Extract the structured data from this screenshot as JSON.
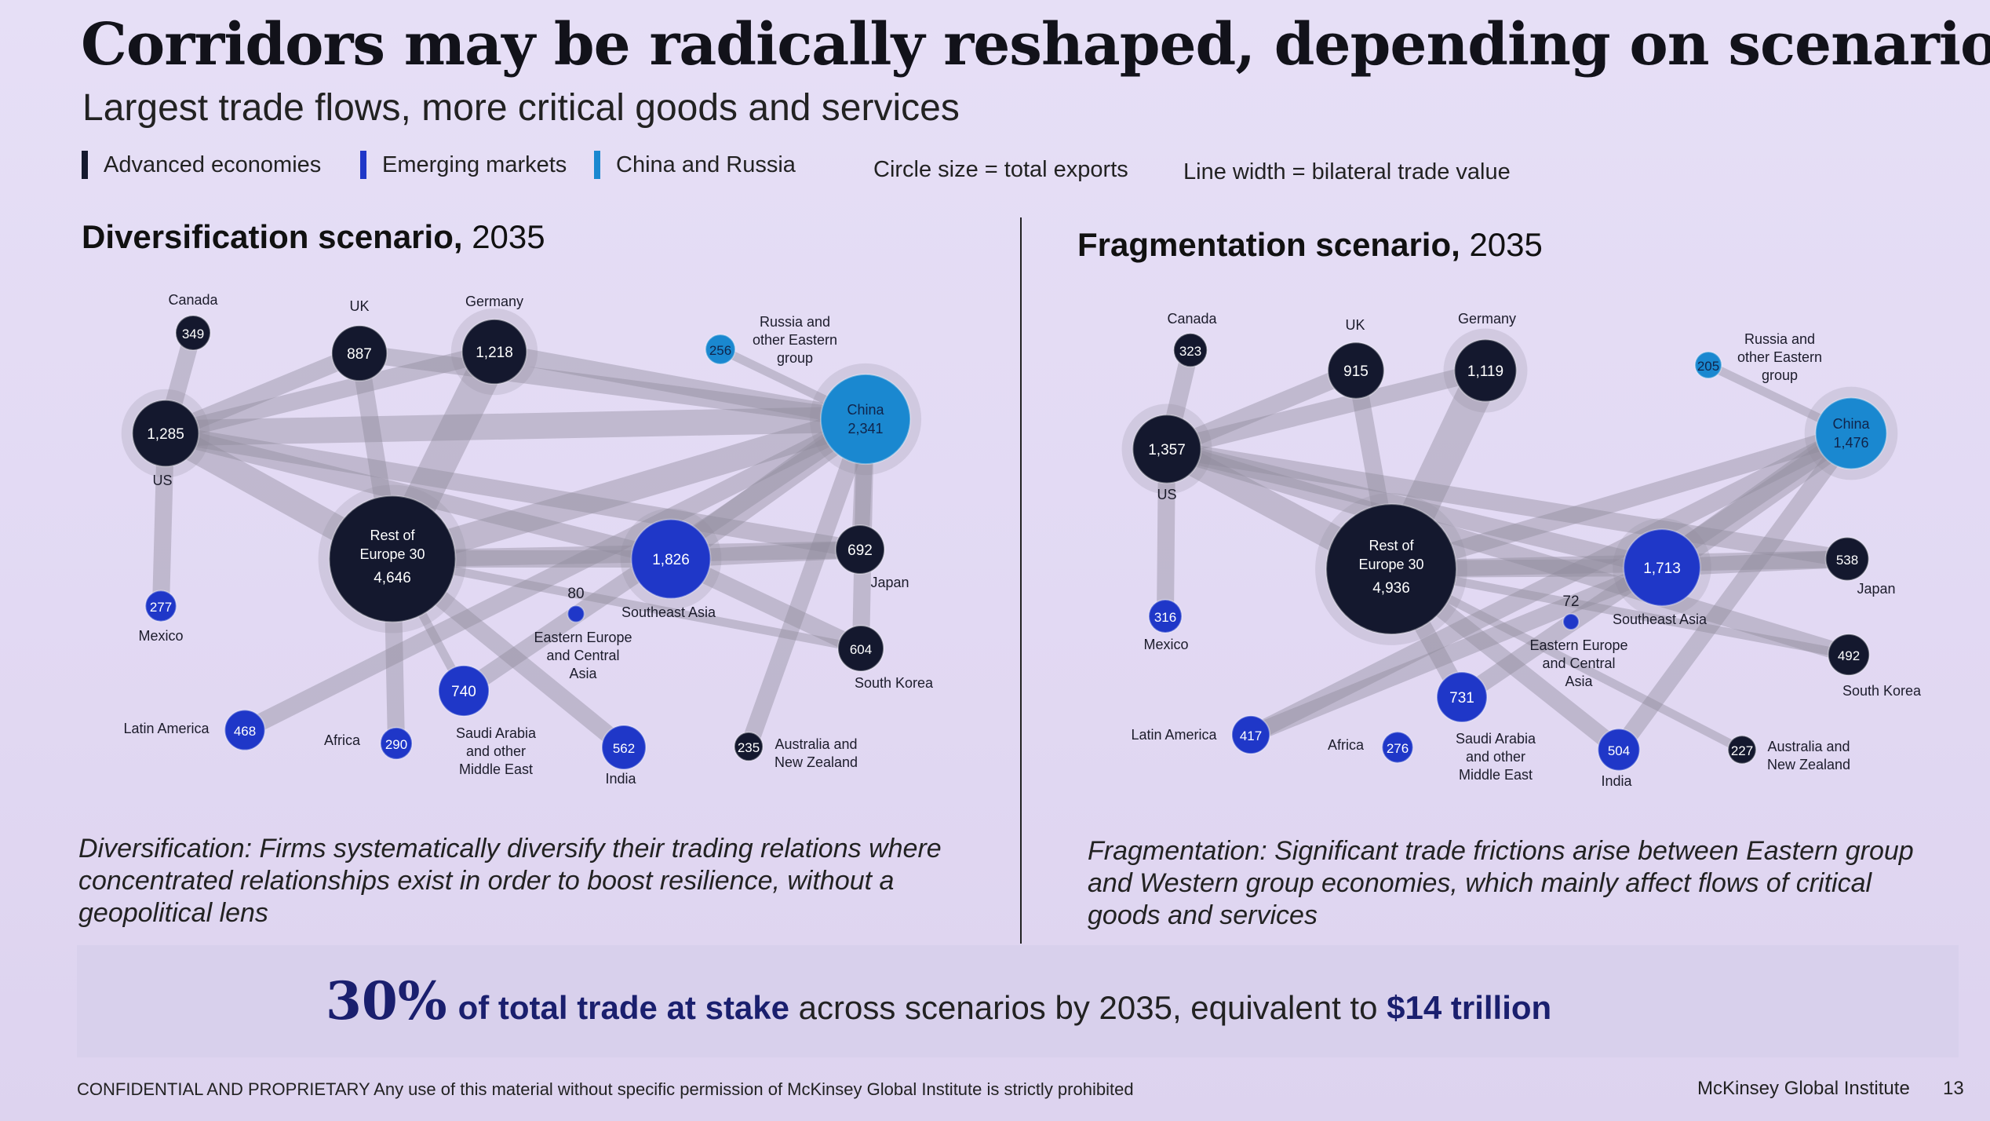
{
  "title": "Corridors may be radically reshaped, depending on scenario",
  "subtitle": "Largest trade flows, more critical goods and services",
  "legend": {
    "advanced": "Advanced economies",
    "emerging": "Emerging markets",
    "china_russia": "China and Russia",
    "circle_note": "Circle size = total exports",
    "line_note": "Line width = bilateral trade value"
  },
  "colors": {
    "advanced": "#14182e",
    "emerging": "#1f37c8",
    "china_russia": "#1a88d0",
    "flow": "#8f8a9c",
    "background": "#e4dcf4"
  },
  "diversification": {
    "title_bold": "Diversification scenario,",
    "title_year": " 2035",
    "caption": "Diversification: Firms systematically diversify their trading relations where concentrated relationships exist in order to boost resilience, without a geopolitical lens",
    "nodes": [
      {
        "id": "canada",
        "name": "Canada",
        "value": 349,
        "value_label": "349",
        "group": "advanced"
      },
      {
        "id": "uk",
        "name": "UK",
        "value": 887,
        "value_label": "887",
        "group": "advanced"
      },
      {
        "id": "germany",
        "name": "Germany",
        "value": 1218,
        "value_label": "1,218",
        "group": "advanced"
      },
      {
        "id": "russia",
        "name": "Russia and other Eastern group",
        "value": 256,
        "value_label": "256",
        "group": "china_russia"
      },
      {
        "id": "china",
        "name": "China",
        "value": 2341,
        "value_label": "2,341",
        "group": "china_russia"
      },
      {
        "id": "us",
        "name": "US",
        "value": 1285,
        "value_label": "1,285",
        "group": "advanced"
      },
      {
        "id": "rest_europe",
        "name": "Rest of Europe 30",
        "value": 4646,
        "value_label": "4,646",
        "group": "advanced"
      },
      {
        "id": "se_asia",
        "name": "Southeast Asia",
        "value": 1826,
        "value_label": "1,826",
        "group": "emerging"
      },
      {
        "id": "japan",
        "name": "Japan",
        "value": 692,
        "value_label": "692",
        "group": "advanced"
      },
      {
        "id": "mexico",
        "name": "Mexico",
        "value": 277,
        "value_label": "277",
        "group": "emerging"
      },
      {
        "id": "ee_ca",
        "name": "Eastern Europe and Central Asia",
        "value": 80,
        "value_label": "80",
        "group": "emerging"
      },
      {
        "id": "south_korea",
        "name": "South Korea",
        "value": 604,
        "value_label": "604",
        "group": "advanced"
      },
      {
        "id": "saudi",
        "name": "Saudi Arabia and other Middle East",
        "value": 740,
        "value_label": "740",
        "group": "emerging"
      },
      {
        "id": "latam",
        "name": "Latin America",
        "value": 468,
        "value_label": "468",
        "group": "emerging"
      },
      {
        "id": "africa",
        "name": "Africa",
        "value": 290,
        "value_label": "290",
        "group": "emerging"
      },
      {
        "id": "india",
        "name": "India",
        "value": 562,
        "value_label": "562",
        "group": "emerging"
      },
      {
        "id": "anz",
        "name": "Australia and New Zealand",
        "value": 235,
        "value_label": "235",
        "group": "advanced"
      }
    ],
    "flows": [
      [
        "us",
        "canada",
        2
      ],
      [
        "us",
        "mexico",
        2
      ],
      [
        "us",
        "rest_europe",
        3
      ],
      [
        "us",
        "uk",
        2
      ],
      [
        "us",
        "germany",
        2
      ],
      [
        "us",
        "china",
        3
      ],
      [
        "us",
        "se_asia",
        2
      ],
      [
        "us",
        "japan",
        2
      ],
      [
        "germany",
        "rest_europe",
        4
      ],
      [
        "uk",
        "rest_europe",
        2
      ],
      [
        "china",
        "rest_europe",
        3
      ],
      [
        "china",
        "se_asia",
        3
      ],
      [
        "china",
        "japan",
        2
      ],
      [
        "china",
        "south_korea",
        2
      ],
      [
        "china",
        "uk",
        2
      ],
      [
        "china",
        "germany",
        2
      ],
      [
        "china",
        "anz",
        2
      ],
      [
        "china",
        "russia",
        1
      ],
      [
        "china",
        "latam",
        2
      ],
      [
        "china",
        "saudi",
        2
      ],
      [
        "rest_europe",
        "se_asia",
        2
      ],
      [
        "rest_europe",
        "africa",
        2
      ],
      [
        "rest_europe",
        "india",
        2
      ],
      [
        "rest_europe",
        "saudi",
        1
      ],
      [
        "rest_europe",
        "japan",
        2
      ],
      [
        "rest_europe",
        "south_korea",
        1
      ],
      [
        "se_asia",
        "japan",
        2
      ],
      [
        "se_asia",
        "south_korea",
        2
      ]
    ]
  },
  "fragmentation": {
    "title_bold": "Fragmentation scenario,",
    "title_year": " 2035",
    "caption": "Fragmentation: Significant trade frictions arise between Eastern group and Western group economies, which mainly affect flows of critical goods and services",
    "nodes": [
      {
        "id": "canada",
        "name": "Canada",
        "value": 323,
        "value_label": "323",
        "group": "advanced"
      },
      {
        "id": "uk",
        "name": "UK",
        "value": 915,
        "value_label": "915",
        "group": "advanced"
      },
      {
        "id": "germany",
        "name": "Germany",
        "value": 1119,
        "value_label": "1,119",
        "group": "advanced"
      },
      {
        "id": "russia",
        "name": "Russia and other Eastern group",
        "value": 205,
        "value_label": "205",
        "group": "china_russia"
      },
      {
        "id": "china",
        "name": "China",
        "value": 1476,
        "value_label": "1,476",
        "group": "china_russia"
      },
      {
        "id": "us",
        "name": "US",
        "value": 1357,
        "value_label": "1,357",
        "group": "advanced"
      },
      {
        "id": "rest_europe",
        "name": "Rest of Europe 30",
        "value": 4936,
        "value_label": "4,936",
        "group": "advanced"
      },
      {
        "id": "se_asia",
        "name": "Southeast Asia",
        "value": 1713,
        "value_label": "1,713",
        "group": "emerging"
      },
      {
        "id": "japan",
        "name": "Japan",
        "value": 538,
        "value_label": "538",
        "group": "advanced"
      },
      {
        "id": "mexico",
        "name": "Mexico",
        "value": 316,
        "value_label": "316",
        "group": "emerging"
      },
      {
        "id": "ee_ca",
        "name": "Eastern Europe and Central Asia",
        "value": 72,
        "value_label": "72",
        "group": "emerging"
      },
      {
        "id": "south_korea",
        "name": "South Korea",
        "value": 492,
        "value_label": "492",
        "group": "advanced"
      },
      {
        "id": "saudi",
        "name": "Saudi Arabia and other Middle East",
        "value": 731,
        "value_label": "731",
        "group": "emerging"
      },
      {
        "id": "latam",
        "name": "Latin America",
        "value": 417,
        "value_label": "417",
        "group": "emerging"
      },
      {
        "id": "africa",
        "name": "Africa",
        "value": 276,
        "value_label": "276",
        "group": "emerging"
      },
      {
        "id": "india",
        "name": "India",
        "value": 504,
        "value_label": "504",
        "group": "emerging"
      },
      {
        "id": "anz",
        "name": "Australia and New Zealand",
        "value": 227,
        "value_label": "227",
        "group": "advanced"
      }
    ],
    "flows": [
      [
        "us",
        "canada",
        2
      ],
      [
        "us",
        "mexico",
        2
      ],
      [
        "us",
        "rest_europe",
        3
      ],
      [
        "us",
        "uk",
        2
      ],
      [
        "us",
        "germany",
        2
      ],
      [
        "us",
        "se_asia",
        2
      ],
      [
        "us",
        "japan",
        2
      ],
      [
        "us",
        "south_korea",
        2
      ],
      [
        "germany",
        "rest_europe",
        4
      ],
      [
        "uk",
        "rest_europe",
        2
      ],
      [
        "rest_europe",
        "se_asia",
        2
      ],
      [
        "rest_europe",
        "japan",
        2
      ],
      [
        "rest_europe",
        "south_korea",
        1
      ],
      [
        "rest_europe",
        "india",
        2
      ],
      [
        "rest_europe",
        "saudi",
        2
      ],
      [
        "rest_europe",
        "anz",
        1
      ],
      [
        "china",
        "se_asia",
        3
      ],
      [
        "china",
        "russia",
        1
      ],
      [
        "china",
        "saudi",
        2
      ],
      [
        "china",
        "latam",
        2
      ],
      [
        "china",
        "india",
        2
      ],
      [
        "china",
        "rest_europe",
        2
      ],
      [
        "se_asia",
        "japan",
        2
      ],
      [
        "latam",
        "se_asia",
        2
      ]
    ]
  },
  "banner": {
    "pct": "30%",
    "bold_part": "of total trade at stake",
    "middle": " across scenarios by 2035, equivalent to ",
    "amount": "$14 trillion"
  },
  "footer": {
    "confidential_bold": "CONFIDENTIAL AND PROPRIETARY",
    "confidential_rest": " Any use of this material without specific permission of McKinsey Global Institute is strictly prohibited",
    "brand": "McKinsey Global Institute",
    "page": "13"
  }
}
